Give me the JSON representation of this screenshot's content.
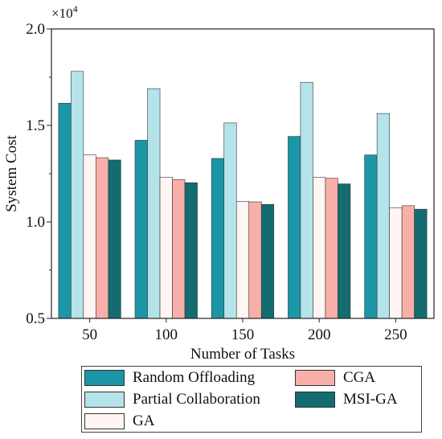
{
  "chart_data": {
    "type": "bar",
    "categories": [
      "50",
      "100",
      "150",
      "200",
      "250"
    ],
    "series": [
      {
        "name": "Random Offloading",
        "color": "#1A96A6",
        "values": [
          1.615,
          1.423,
          1.329,
          1.443,
          1.347
        ]
      },
      {
        "name": "Partial Collaboration",
        "color": "#B4E3EA",
        "values": [
          1.78,
          1.69,
          1.513,
          1.723,
          1.562
        ]
      },
      {
        "name": "GA",
        "color": "#FFF5F2",
        "values": [
          1.347,
          1.231,
          1.107,
          1.231,
          1.074
        ]
      },
      {
        "name": "CGA",
        "color": "#F9AFA9",
        "values": [
          1.333,
          1.22,
          1.104,
          1.226,
          1.084
        ]
      },
      {
        "name": "MSI-GA",
        "color": "#126C70",
        "values": [
          1.321,
          1.203,
          1.091,
          1.197,
          1.066
        ]
      }
    ],
    "xlabel": "Number of Tasks",
    "ylabel": "System Cost",
    "ylim": [
      0.5,
      2.0
    ],
    "yticks": [
      "0.5",
      "1.0",
      "1.5",
      "2.0"
    ],
    "multiplier": "×10",
    "exponent": "4",
    "grid": false,
    "legend_position": "below"
  }
}
